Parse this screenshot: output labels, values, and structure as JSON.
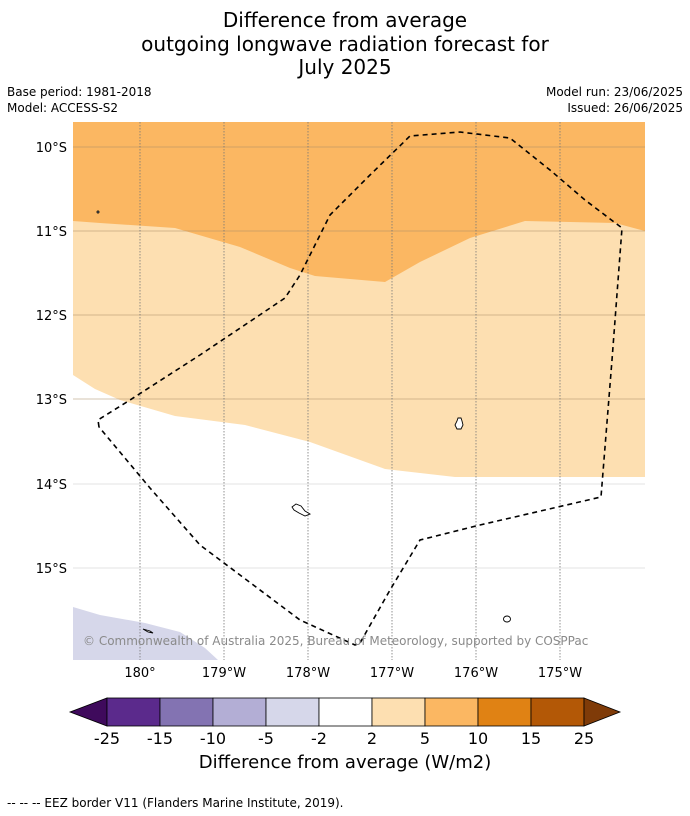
{
  "title": {
    "line1": "Difference from average",
    "line2": "outgoing longwave radiation forecast for",
    "line3": "July 2025"
  },
  "meta": {
    "base_period": "Base period: 1981-2018",
    "model": "Model: ACCESS-S2",
    "model_run": "Model run: 23/06/2025",
    "issued": "Issued: 26/06/2025"
  },
  "map": {
    "lat_labels": [
      "10°S",
      "11°S",
      "12°S",
      "13°S",
      "14°S",
      "15°S"
    ],
    "lon_labels": [
      "180°",
      "179°W",
      "178°W",
      "177°W",
      "176°W",
      "175°W"
    ],
    "credit": "© Commonwealth of Australia 2025, Bureau of Meteorology, supported by COSPPac",
    "colors": {
      "band_5_10": "#fbb762",
      "band_2_5": "#fddfb1",
      "band_minus5_minus2": "#d6d7ea",
      "eez_border": "#000000"
    }
  },
  "colorbar": {
    "ticks": [
      "-25",
      "-15",
      "-10",
      "-5",
      "-2",
      "2",
      "5",
      "10",
      "15",
      "25"
    ],
    "colors": [
      "#3f0a5c",
      "#5b2a8c",
      "#8373b2",
      "#b3aed5",
      "#d6d7ea",
      "#ffffff",
      "#fddfb1",
      "#fbb762",
      "#e08214",
      "#b35806",
      "#7f3b08"
    ],
    "title": "Difference from average (W/m2)"
  },
  "footnote": "--  --  -- EEZ border V11 (Flanders Marine Institute, 2019)."
}
